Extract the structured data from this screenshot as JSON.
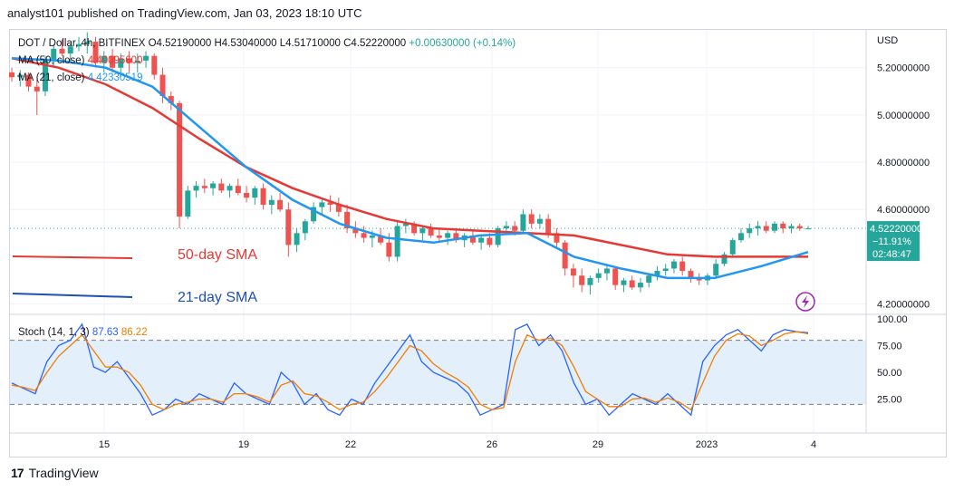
{
  "header": {
    "published_line": "analyst101 published on TradingView.com, Jan 03, 2023 18:10 UTC"
  },
  "legend": {
    "symbol": "DOT / Dollar, 4h, BITFINEX",
    "open": "O4.52190000",
    "high": "H4.53040000",
    "low": "L4.51710000",
    "close": "C4.52220000",
    "change": "+0.00630000 (+0.14%)",
    "ma50_label": "MA (50, close)",
    "ma50_value": "4.40095600",
    "ma21_label": "MA (21, close)",
    "ma21_value": "4.42330519"
  },
  "annotations": {
    "sma50_text": "50-day SMA",
    "sma21_text": "21-day SMA"
  },
  "price_badge": {
    "price": "4.52220000",
    "change_pct": "−11.91%",
    "countdown": "02:48:47"
  },
  "stoch": {
    "label": "Stoch (14, 1, 3)",
    "k_value": "87.63",
    "d_value": "86.22"
  },
  "footer": {
    "brand": "TradingView",
    "logo_mark": "17"
  },
  "colors": {
    "up": "#26a69a",
    "down": "#ef5350",
    "ma50": "#e53935",
    "ma21": "#2196f3",
    "stoch_k": "#2962ff",
    "stoch_d": "#f57c00",
    "band": "#e3f0fb",
    "badge": "#26a69a"
  },
  "chart_data": [
    {
      "type": "candlestick",
      "title": "DOT / Dollar, 4h, BITFINEX",
      "currency": "USD",
      "x_ticks": [
        "15",
        "19",
        "22",
        "26",
        "29",
        "2023",
        "4"
      ],
      "y_ticks": [
        "5.20000000",
        "5.00000000",
        "4.80000000",
        "4.60000000",
        "4.20000000"
      ],
      "ylim": [
        4.16,
        5.36
      ],
      "grid": true,
      "candles": [
        [
          5.18,
          5.2,
          5.14,
          5.16
        ],
        [
          5.16,
          5.19,
          5.12,
          5.17
        ],
        [
          5.17,
          5.18,
          5.1,
          5.12
        ],
        [
          5.12,
          5.15,
          5.0,
          5.1
        ],
        [
          5.1,
          5.25,
          5.08,
          5.23
        ],
        [
          5.23,
          5.3,
          5.2,
          5.28
        ],
        [
          5.28,
          5.32,
          5.25,
          5.26
        ],
        [
          5.26,
          5.3,
          5.22,
          5.29
        ],
        [
          5.29,
          5.33,
          5.27,
          5.3
        ],
        [
          5.3,
          5.35,
          5.26,
          5.31
        ],
        [
          5.31,
          5.33,
          5.2,
          5.22
        ],
        [
          5.22,
          5.27,
          5.18,
          5.25
        ],
        [
          5.25,
          5.28,
          5.18,
          5.2
        ],
        [
          5.2,
          5.26,
          5.16,
          5.24
        ],
        [
          5.24,
          5.27,
          5.18,
          5.22
        ],
        [
          5.22,
          5.26,
          5.18,
          5.23
        ],
        [
          5.23,
          5.27,
          5.2,
          5.25
        ],
        [
          5.25,
          5.26,
          5.15,
          5.17
        ],
        [
          5.17,
          5.2,
          5.05,
          5.08
        ],
        [
          5.08,
          5.1,
          5.02,
          5.05
        ],
        [
          5.05,
          5.06,
          4.52,
          4.57
        ],
        [
          4.57,
          4.7,
          4.56,
          4.68
        ],
        [
          4.68,
          4.72,
          4.65,
          4.7
        ],
        [
          4.7,
          4.73,
          4.67,
          4.69
        ],
        [
          4.69,
          4.72,
          4.66,
          4.71
        ],
        [
          4.71,
          4.73,
          4.67,
          4.68
        ],
        [
          4.68,
          4.71,
          4.65,
          4.7
        ],
        [
          4.7,
          4.73,
          4.66,
          4.67
        ],
        [
          4.67,
          4.7,
          4.63,
          4.65
        ],
        [
          4.65,
          4.7,
          4.62,
          4.69
        ],
        [
          4.69,
          4.71,
          4.6,
          4.62
        ],
        [
          4.62,
          4.66,
          4.58,
          4.64
        ],
        [
          4.64,
          4.67,
          4.59,
          4.6
        ],
        [
          4.6,
          4.63,
          4.4,
          4.45
        ],
        [
          4.45,
          4.52,
          4.42,
          4.5
        ],
        [
          4.5,
          4.56,
          4.47,
          4.55
        ],
        [
          4.55,
          4.63,
          4.54,
          4.61
        ],
        [
          4.61,
          4.65,
          4.58,
          4.63
        ],
        [
          4.63,
          4.66,
          4.59,
          4.62
        ],
        [
          4.62,
          4.65,
          4.57,
          4.59
        ],
        [
          4.59,
          4.62,
          4.5,
          4.52
        ],
        [
          4.52,
          4.55,
          4.48,
          4.5
        ],
        [
          4.5,
          4.53,
          4.46,
          4.48
        ],
        [
          4.48,
          4.51,
          4.44,
          4.49
        ],
        [
          4.49,
          4.52,
          4.45,
          4.46
        ],
        [
          4.46,
          4.5,
          4.38,
          4.4
        ],
        [
          4.4,
          4.55,
          4.38,
          4.53
        ],
        [
          4.53,
          4.56,
          4.5,
          4.54
        ],
        [
          4.54,
          4.55,
          4.49,
          4.5
        ],
        [
          4.5,
          4.53,
          4.47,
          4.52
        ],
        [
          4.52,
          4.54,
          4.48,
          4.49
        ],
        [
          4.49,
          4.52,
          4.46,
          4.48
        ],
        [
          4.48,
          4.51,
          4.45,
          4.5
        ],
        [
          4.5,
          4.52,
          4.46,
          4.47
        ],
        [
          4.47,
          4.5,
          4.44,
          4.49
        ],
        [
          4.49,
          4.51,
          4.45,
          4.46
        ],
        [
          4.46,
          4.49,
          4.43,
          4.48
        ],
        [
          4.48,
          4.5,
          4.44,
          4.45
        ],
        [
          4.45,
          4.53,
          4.44,
          4.52
        ],
        [
          4.52,
          4.55,
          4.5,
          4.53
        ],
        [
          4.53,
          4.55,
          4.49,
          4.51
        ],
        [
          4.51,
          4.6,
          4.5,
          4.58
        ],
        [
          4.58,
          4.6,
          4.52,
          4.54
        ],
        [
          4.54,
          4.58,
          4.52,
          4.56
        ],
        [
          4.56,
          4.58,
          4.48,
          4.5
        ],
        [
          4.5,
          4.52,
          4.44,
          4.46
        ],
        [
          4.46,
          4.47,
          4.32,
          4.35
        ],
        [
          4.35,
          4.37,
          4.27,
          4.32
        ],
        [
          4.32,
          4.35,
          4.25,
          4.28
        ],
        [
          4.28,
          4.32,
          4.24,
          4.31
        ],
        [
          4.31,
          4.35,
          4.29,
          4.33
        ],
        [
          4.33,
          4.37,
          4.3,
          4.35
        ],
        [
          4.35,
          4.36,
          4.26,
          4.28
        ],
        [
          4.28,
          4.31,
          4.25,
          4.3
        ],
        [
          4.3,
          4.32,
          4.26,
          4.27
        ],
        [
          4.27,
          4.31,
          4.25,
          4.29
        ],
        [
          4.29,
          4.33,
          4.27,
          4.32
        ],
        [
          4.32,
          4.36,
          4.3,
          4.34
        ],
        [
          4.34,
          4.37,
          4.32,
          4.35
        ],
        [
          4.35,
          4.39,
          4.33,
          4.38
        ],
        [
          4.38,
          4.4,
          4.32,
          4.34
        ],
        [
          4.34,
          4.35,
          4.29,
          4.31
        ],
        [
          4.31,
          4.33,
          4.28,
          4.3
        ],
        [
          4.3,
          4.33,
          4.28,
          4.32
        ],
        [
          4.32,
          4.39,
          4.31,
          4.37
        ],
        [
          4.37,
          4.42,
          4.36,
          4.41
        ],
        [
          4.41,
          4.48,
          4.4,
          4.47
        ],
        [
          4.47,
          4.52,
          4.46,
          4.5
        ],
        [
          4.5,
          4.54,
          4.48,
          4.52
        ],
        [
          4.52,
          4.55,
          4.49,
          4.53
        ],
        [
          4.53,
          4.55,
          4.5,
          4.51
        ],
        [
          4.51,
          4.55,
          4.5,
          4.54
        ],
        [
          4.54,
          4.55,
          4.5,
          4.52
        ],
        [
          4.52,
          4.54,
          4.5,
          4.53
        ],
        [
          4.53,
          4.54,
          4.51,
          4.52
        ],
        [
          4.52,
          4.53,
          4.52,
          4.52
        ]
      ],
      "ma50": [
        5.24,
        5.2,
        5.13,
        5.03,
        4.9,
        4.78,
        4.69,
        4.62,
        4.56,
        4.52,
        4.51,
        4.5,
        4.49,
        4.45,
        4.41,
        4.4,
        4.4,
        4.4
      ],
      "ma21": [
        5.24,
        5.23,
        5.2,
        5.12,
        4.95,
        4.78,
        4.64,
        4.54,
        4.48,
        4.46,
        4.49,
        4.5,
        4.4,
        4.35,
        4.31,
        4.31,
        4.36,
        4.42
      ]
    },
    {
      "type": "line",
      "title": "Stoch (14, 1, 3)",
      "y_ticks": [
        "100.00",
        "75.00",
        "50.00",
        "25.00"
      ],
      "ylim": [
        0,
        100
      ],
      "band": [
        20,
        80
      ],
      "series": [
        {
          "name": "%K",
          "values": [
            40,
            35,
            30,
            60,
            75,
            80,
            95,
            55,
            50,
            60,
            45,
            30,
            10,
            15,
            25,
            20,
            30,
            25,
            20,
            40,
            30,
            25,
            20,
            50,
            40,
            20,
            30,
            15,
            10,
            25,
            20,
            40,
            55,
            70,
            85,
            60,
            50,
            45,
            40,
            30,
            10,
            15,
            20,
            90,
            95,
            75,
            85,
            70,
            40,
            20,
            25,
            10,
            20,
            30,
            25,
            20,
            30,
            20,
            10,
            60,
            75,
            85,
            90,
            80,
            70,
            85,
            90,
            88,
            87
          ]
        },
        {
          "name": "%D",
          "values": [
            38,
            36,
            33,
            50,
            65,
            75,
            85,
            70,
            55,
            55,
            50,
            38,
            20,
            15,
            20,
            22,
            25,
            25,
            22,
            30,
            30,
            27,
            22,
            38,
            42,
            30,
            28,
            22,
            15,
            20,
            22,
            32,
            45,
            60,
            75,
            70,
            58,
            50,
            44,
            36,
            20,
            15,
            17,
            60,
            85,
            80,
            82,
            75,
            55,
            32,
            25,
            18,
            18,
            25,
            26,
            22,
            26,
            22,
            15,
            40,
            65,
            80,
            86,
            84,
            75,
            80,
            86,
            88,
            86
          ]
        }
      ],
      "x_ticks": [
        "15",
        "19",
        "22",
        "26",
        "29",
        "2023",
        "4"
      ]
    }
  ]
}
